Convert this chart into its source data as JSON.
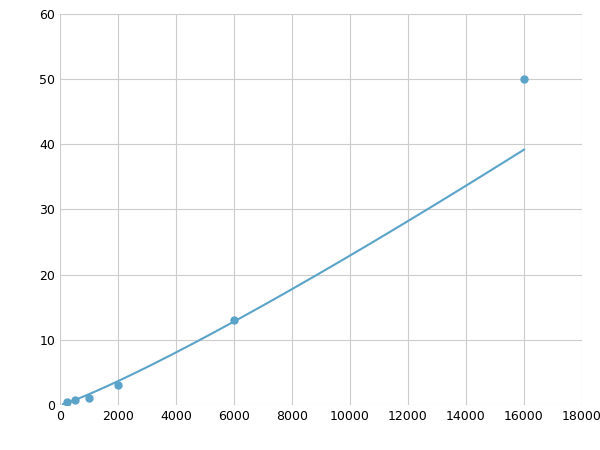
{
  "x_data": [
    250,
    500,
    1000,
    2000,
    6000,
    16000
  ],
  "y_data": [
    0.5,
    0.8,
    1.0,
    3.0,
    13.0,
    50.0
  ],
  "line_color": "#5ba3c9",
  "marker_color": "#5ba3c9",
  "marker_size": 5,
  "line_width": 1.5,
  "xlim": [
    0,
    18000
  ],
  "ylim": [
    0,
    60
  ],
  "xticks": [
    0,
    2000,
    4000,
    6000,
    8000,
    10000,
    12000,
    14000,
    16000,
    18000
  ],
  "yticks": [
    0,
    10,
    20,
    30,
    40,
    50,
    60
  ],
  "grid_color": "#cccccc",
  "background_color": "#ffffff",
  "fig_width": 6.0,
  "fig_height": 4.5,
  "dpi": 100
}
